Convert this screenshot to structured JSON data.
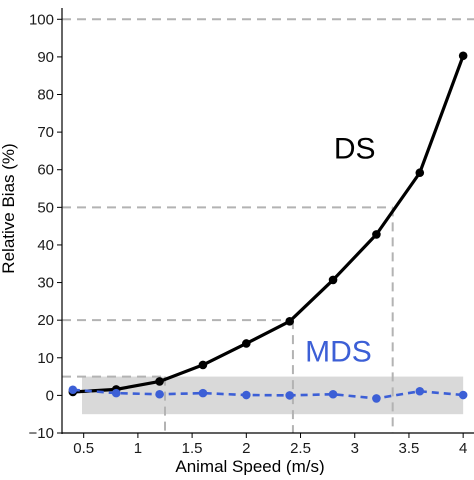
{
  "chart_data": {
    "type": "line",
    "xlabel": "Animal Speed (m/s)",
    "ylabel": "Relative Bias (%)",
    "xlim": [
      0.3,
      4.1
    ],
    "ylim": [
      -10,
      103
    ],
    "x_ticks": [
      0.5,
      1,
      1.5,
      2,
      2.5,
      3,
      3.5,
      4
    ],
    "y_ticks": [
      -10,
      0,
      10,
      20,
      30,
      40,
      50,
      60,
      70,
      80,
      90,
      100
    ],
    "x_tick_labels": [
      "0.5",
      "1",
      "1.5",
      "2",
      "2.5",
      "3",
      "3.5",
      "4"
    ],
    "y_tick_labels": [
      "−10",
      "0",
      "10",
      "20",
      "30",
      "40",
      "50",
      "60",
      "70",
      "80",
      "90",
      "100"
    ],
    "band": {
      "y_from": -5,
      "y_to": 5,
      "color": "#d9d9d9"
    },
    "reference_lines": [
      {
        "from_x": 0.3,
        "to_x": 1.25,
        "y": 5
      },
      {
        "from_x": 0.3,
        "to_x": 2.43,
        "y": 20
      },
      {
        "from_x": 0.3,
        "to_x": 3.35,
        "y": 50
      },
      {
        "from_x": 0.3,
        "to_x": 4.1,
        "y": 100
      }
    ],
    "grid": false,
    "series": [
      {
        "name": "DS",
        "color": "#000000",
        "style": "solid",
        "x": [
          0.4,
          0.8,
          1.2,
          1.6,
          2.0,
          2.4,
          2.8,
          3.2,
          3.6,
          4.0
        ],
        "values": [
          0.9,
          1.6,
          3.7,
          8.1,
          13.8,
          19.7,
          30.7,
          42.8,
          59.2,
          90.3
        ]
      },
      {
        "name": "MDS",
        "color": "#3c5fd6",
        "style": "dashed",
        "x": [
          0.4,
          0.8,
          1.2,
          1.6,
          2.0,
          2.4,
          2.8,
          3.2,
          3.6,
          4.0
        ],
        "values": [
          1.5,
          0.6,
          0.3,
          0.6,
          0.1,
          0.0,
          0.3,
          -0.8,
          1.1,
          0.1
        ]
      }
    ],
    "annotations": [
      {
        "text": "DS",
        "x": 3.0,
        "y": 63,
        "color": "#000000"
      },
      {
        "text": "MDS",
        "x": 2.85,
        "y": 9,
        "color": "#3c5fd6"
      }
    ]
  }
}
